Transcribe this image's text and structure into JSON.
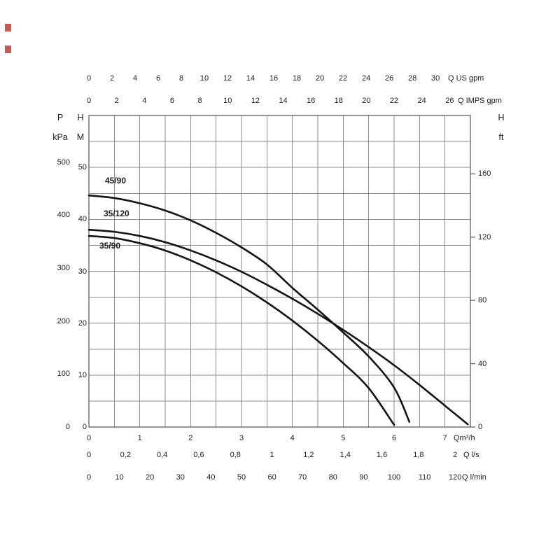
{
  "chart_data": {
    "type": "line",
    "x_unit_primary": "m³/h",
    "x_range_m3h": [
      0,
      7.5
    ],
    "y_unit_primary": "M",
    "y_range_m": [
      0,
      60
    ],
    "grid": {
      "on": true,
      "x_step_m3h": 0.5,
      "y_step_m": 5
    },
    "x_axes": [
      {
        "id": "us_gpm",
        "position": "top-1",
        "unit_label": "Q US gpm",
        "ticks": [
          0,
          2,
          4,
          6,
          8,
          10,
          12,
          14,
          16,
          18,
          20,
          22,
          24,
          26,
          28,
          30
        ],
        "m3h_per_unit": 0.22712
      },
      {
        "id": "imp_gpm",
        "position": "top-2",
        "unit_label": "Q IMPS gpm",
        "ticks": [
          0,
          2,
          4,
          6,
          8,
          10,
          12,
          14,
          16,
          18,
          20,
          22,
          24,
          26
        ],
        "m3h_per_unit": 0.27276
      },
      {
        "id": "m3h",
        "position": "bottom-1",
        "unit_label": "Qm³/h",
        "ticks": [
          0,
          1,
          2,
          3,
          4,
          5,
          6,
          7
        ],
        "m3h_per_unit": 1
      },
      {
        "id": "l_s",
        "position": "bottom-2",
        "unit_label": "Q l/s",
        "tick_values": [
          0,
          0.2,
          0.4,
          0.6,
          0.8,
          1,
          1.2,
          1.4,
          1.6,
          1.8,
          2
        ],
        "tick_labels": [
          "0",
          "0,2",
          "0,4",
          "0,6",
          "0,8",
          "1",
          "1,2",
          "1,4",
          "1,6",
          "1,8",
          "2"
        ],
        "m3h_per_unit": 3.6
      },
      {
        "id": "l_min",
        "position": "bottom-3",
        "unit_label": "Q l/min",
        "ticks": [
          0,
          10,
          20,
          30,
          40,
          50,
          60,
          70,
          80,
          90,
          100,
          110,
          120
        ],
        "m3h_per_unit": 0.06
      }
    ],
    "y_axes": [
      {
        "id": "kpa",
        "position": "left-1",
        "head_top": "P",
        "head_bottom": "kPa",
        "ticks": [
          500,
          400,
          300,
          200,
          100,
          0
        ],
        "m_per_unit": 0.10197
      },
      {
        "id": "m",
        "position": "left-2",
        "head_top": "H",
        "head_bottom": "M",
        "ticks": [
          50,
          40,
          30,
          20,
          10,
          0
        ],
        "m_per_unit": 1
      },
      {
        "id": "ft",
        "position": "right-1",
        "head_top": "H",
        "head_bottom": "ft",
        "ticks": [
          160,
          120,
          80,
          40,
          0
        ],
        "m_per_unit": 0.3048
      }
    ],
    "series": [
      {
        "name": "45/90",
        "points": [
          [
            0,
            44.6
          ],
          [
            0.5,
            44.1
          ],
          [
            1,
            43.1
          ],
          [
            1.5,
            41.7
          ],
          [
            2,
            39.8
          ],
          [
            2.5,
            37.4
          ],
          [
            3,
            34.6
          ],
          [
            3.5,
            31.3
          ],
          [
            4,
            26.8
          ],
          [
            4.5,
            22.6
          ],
          [
            5,
            18.2
          ],
          [
            5.5,
            13.6
          ],
          [
            6,
            7.6
          ],
          [
            6.3,
            1.0
          ]
        ]
      },
      {
        "name": "35/120",
        "points": [
          [
            0,
            38.0
          ],
          [
            0.5,
            37.6
          ],
          [
            1,
            36.8
          ],
          [
            1.5,
            35.6
          ],
          [
            2,
            34.0
          ],
          [
            2.5,
            32.1
          ],
          [
            3,
            29.9
          ],
          [
            3.5,
            27.4
          ],
          [
            4,
            24.7
          ],
          [
            4.5,
            21.8
          ],
          [
            5,
            18.7
          ],
          [
            5.5,
            15.4
          ],
          [
            6,
            11.9
          ],
          [
            6.5,
            8.1
          ],
          [
            7,
            4.1
          ],
          [
            7.45,
            0.5
          ]
        ]
      },
      {
        "name": "35/90",
        "points": [
          [
            0,
            36.8
          ],
          [
            0.5,
            36.4
          ],
          [
            1,
            35.4
          ],
          [
            1.5,
            34.0
          ],
          [
            2,
            32.1
          ],
          [
            2.5,
            29.8
          ],
          [
            3,
            27.1
          ],
          [
            3.5,
            24.0
          ],
          [
            4,
            20.5
          ],
          [
            4.5,
            16.6
          ],
          [
            5,
            12.3
          ],
          [
            5.5,
            7.5
          ],
          [
            6,
            0.4
          ]
        ]
      }
    ],
    "legend": "curve name labels drawn inline near the left start of each curve",
    "colors": {
      "curve": "#141414",
      "grid": "#8c8c8c",
      "frame": "#5f5f5f",
      "text": "#1c1c1c",
      "artifact_red": "#c23a32"
    }
  }
}
